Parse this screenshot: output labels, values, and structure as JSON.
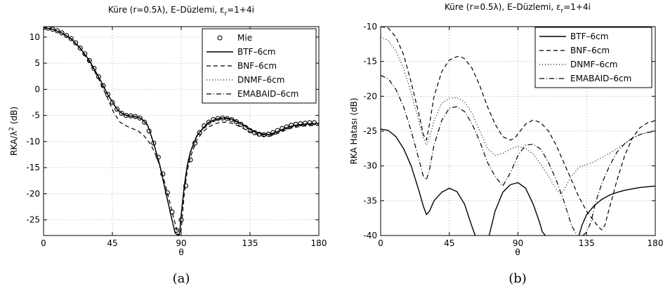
{
  "chart_data": [
    {
      "type": "line",
      "panel": "(a)",
      "title_main": "Küre (r=0.5λ), E–Düzlemi, ε",
      "title_sub": "r",
      "title_tail": "=1+4i",
      "xlabel": "θ",
      "ylabel": "RKA/λ",
      "ylabel_sup": "2",
      "ylabel_tail": " (dB)",
      "xlim": [
        0,
        180
      ],
      "ylim": [
        -28,
        12
      ],
      "xticks": [
        0,
        45,
        90,
        135,
        180
      ],
      "yticks": [
        10,
        5,
        0,
        -5,
        -10,
        -15,
        -20,
        -25
      ],
      "grid": true,
      "legend_position": "top-right",
      "series": [
        {
          "name": "Mie",
          "style": "markers",
          "x": [
            0,
            3,
            6,
            9,
            12,
            15,
            18,
            21,
            24,
            27,
            30,
            33,
            36,
            39,
            42,
            45,
            48,
            51,
            54,
            57,
            60,
            63,
            66,
            69,
            72,
            75,
            78,
            81,
            84,
            87,
            90,
            93,
            96,
            99,
            102,
            105,
            108,
            111,
            114,
            117,
            120,
            123,
            126,
            129,
            132,
            135,
            138,
            141,
            144,
            147,
            150,
            153,
            156,
            159,
            162,
            165,
            168,
            171,
            174,
            177
          ],
          "y": [
            11.8,
            11.7,
            11.5,
            11.2,
            10.8,
            10.3,
            9.7,
            8.9,
            7.9,
            6.8,
            5.5,
            4.0,
            2.4,
            0.7,
            -1.0,
            -2.5,
            -3.8,
            -4.6,
            -5.0,
            -5.1,
            -5.2,
            -5.5,
            -6.3,
            -8.0,
            -10.3,
            -13.0,
            -16.2,
            -19.8,
            -23.5,
            -27.0,
            -25.0,
            -18.5,
            -13.5,
            -10.3,
            -8.3,
            -7.0,
            -6.3,
            -5.8,
            -5.6,
            -5.5,
            -5.6,
            -5.8,
            -6.2,
            -6.7,
            -7.3,
            -7.9,
            -8.3,
            -8.6,
            -8.7,
            -8.6,
            -8.3,
            -7.9,
            -7.5,
            -7.2,
            -6.9,
            -6.7,
            -6.6,
            -6.5,
            -6.4,
            -6.4
          ]
        },
        {
          "name": "BTF–6cm",
          "style": "solid",
          "x": [
            0,
            6,
            12,
            18,
            24,
            30,
            36,
            42,
            48,
            52,
            56,
            60,
            64,
            68,
            72,
            76,
            80,
            84,
            86,
            88,
            89,
            90,
            92,
            94,
            96,
            100,
            104,
            108,
            112,
            116,
            120,
            124,
            128,
            132,
            136,
            140,
            144,
            148,
            152,
            156,
            160,
            166,
            172,
            180
          ],
          "y": [
            11.8,
            11.5,
            10.8,
            9.7,
            7.9,
            5.5,
            2.4,
            -1.0,
            -3.8,
            -4.8,
            -5.1,
            -5.2,
            -5.6,
            -6.8,
            -10.3,
            -14.5,
            -19.8,
            -25.0,
            -27.5,
            -28.0,
            -27.5,
            -24.0,
            -18.5,
            -14.5,
            -12.0,
            -9.0,
            -7.5,
            -6.3,
            -5.8,
            -5.5,
            -5.5,
            -5.8,
            -6.4,
            -7.0,
            -7.8,
            -8.3,
            -8.6,
            -8.6,
            -8.2,
            -7.7,
            -7.2,
            -6.8,
            -6.6,
            -6.5
          ]
        },
        {
          "name": "BNF–6cm",
          "style": "dashed",
          "x": [
            0,
            6,
            12,
            18,
            24,
            30,
            36,
            42,
            46,
            50,
            54,
            58,
            62,
            66,
            70,
            74,
            78,
            82,
            85,
            88,
            89,
            90,
            92,
            94,
            96,
            100,
            104,
            108,
            112,
            116,
            120,
            124,
            128,
            132,
            136,
            140,
            144,
            148,
            152,
            156,
            160,
            166,
            172,
            180
          ],
          "y": [
            11.8,
            11.5,
            10.8,
            9.6,
            7.8,
            5.2,
            2.0,
            -1.8,
            -4.5,
            -6.3,
            -7.0,
            -7.5,
            -8.0,
            -9.0,
            -10.5,
            -13.0,
            -16.5,
            -21.0,
            -24.5,
            -28.0,
            -28.0,
            -27.0,
            -20.0,
            -15.5,
            -13.0,
            -9.8,
            -8.2,
            -7.2,
            -6.6,
            -6.3,
            -6.3,
            -6.6,
            -7.1,
            -7.7,
            -8.3,
            -8.7,
            -9.0,
            -9.0,
            -8.6,
            -8.1,
            -7.6,
            -7.2,
            -7.0,
            -6.9
          ]
        },
        {
          "name": "DNMF–6cm",
          "style": "dotted",
          "x": [
            0,
            6,
            12,
            18,
            24,
            30,
            36,
            42,
            48,
            52,
            56,
            60,
            64,
            68,
            72,
            76,
            80,
            84,
            86,
            88,
            89,
            90,
            92,
            94,
            96,
            100,
            104,
            108,
            112,
            116,
            120,
            124,
            128,
            132,
            136,
            140,
            144,
            148,
            152,
            156,
            160,
            166,
            172,
            180
          ],
          "y": [
            11.8,
            11.5,
            10.7,
            9.6,
            7.8,
            5.4,
            2.3,
            -1.1,
            -3.9,
            -4.9,
            -5.3,
            -5.4,
            -5.8,
            -7.0,
            -10.5,
            -14.7,
            -20.0,
            -25.0,
            -27.5,
            -28.0,
            -27.8,
            -24.5,
            -19.0,
            -15.0,
            -12.3,
            -9.2,
            -7.7,
            -6.5,
            -6.0,
            -5.7,
            -5.7,
            -6.0,
            -6.6,
            -7.2,
            -8.0,
            -8.5,
            -8.8,
            -8.8,
            -8.4,
            -7.9,
            -7.4,
            -7.0,
            -6.8,
            -6.7
          ]
        },
        {
          "name": "EMABAID–6cm",
          "style": "dashdot",
          "x": [
            0,
            6,
            12,
            18,
            24,
            30,
            36,
            42,
            48,
            52,
            56,
            60,
            64,
            68,
            72,
            76,
            80,
            84,
            86,
            88,
            89,
            90,
            92,
            94,
            96,
            100,
            104,
            108,
            112,
            116,
            120,
            124,
            128,
            132,
            136,
            140,
            144,
            148,
            152,
            156,
            160,
            166,
            172,
            180
          ],
          "y": [
            11.8,
            11.5,
            10.8,
            9.7,
            7.9,
            5.5,
            2.4,
            -1.0,
            -3.8,
            -4.8,
            -5.1,
            -5.2,
            -5.6,
            -6.8,
            -10.4,
            -14.6,
            -19.9,
            -25.0,
            -27.5,
            -28.0,
            -27.5,
            -24.2,
            -18.6,
            -14.6,
            -12.1,
            -9.1,
            -7.6,
            -6.4,
            -5.9,
            -5.6,
            -5.6,
            -5.9,
            -6.5,
            -7.1,
            -7.9,
            -8.4,
            -8.7,
            -8.7,
            -8.3,
            -7.8,
            -7.3,
            -6.9,
            -6.7,
            -6.6
          ]
        }
      ]
    },
    {
      "type": "line",
      "panel": "(b)",
      "title_main": "Küre (r=0.5λ), E–Düzlemi, ε",
      "title_sub": "r",
      "title_tail": "=1+4i",
      "xlabel": "θ",
      "ylabel": "RKA Hatası (dB)",
      "xlim": [
        0,
        180
      ],
      "ylim": [
        -40,
        -10
      ],
      "xticks": [
        0,
        45,
        90,
        135,
        180
      ],
      "yticks": [
        -10,
        -15,
        -20,
        -25,
        -30,
        -35,
        -40
      ],
      "grid": true,
      "legend_position": "top-right",
      "series": [
        {
          "name": "BTF–6cm",
          "style": "solid",
          "x": [
            0,
            5,
            10,
            15,
            20,
            25,
            28,
            30,
            32,
            35,
            40,
            45,
            50,
            55,
            58,
            60,
            62,
            64,
            66,
            68,
            70,
            75,
            80,
            85,
            90,
            95,
            100,
            104,
            106,
            108,
            110,
            112,
            114,
            116,
            118,
            126,
            128,
            130,
            132,
            135,
            140,
            145,
            150,
            155,
            160,
            165,
            170,
            175,
            180
          ],
          "y": [
            -24.7,
            -24.9,
            -25.8,
            -27.5,
            -30.0,
            -33.5,
            -35.8,
            -37.0,
            -36.5,
            -35.0,
            -33.8,
            -33.2,
            -33.7,
            -35.5,
            -37.5,
            -38.8,
            -40,
            -41,
            -42,
            -42,
            -41,
            -36.5,
            -33.8,
            -32.7,
            -32.4,
            -33.2,
            -35.5,
            -38.0,
            -39.5,
            -40,
            -41,
            -42,
            -42,
            -42,
            -42,
            -42,
            -41,
            -40,
            -38.5,
            -37.0,
            -35.7,
            -34.8,
            -34.2,
            -33.8,
            -33.5,
            -33.3,
            -33.1,
            -33.0,
            -32.9
          ]
        },
        {
          "name": "BNF–6cm",
          "style": "dashed",
          "x": [
            0,
            5,
            10,
            15,
            20,
            25,
            28,
            30,
            32,
            35,
            40,
            45,
            50,
            52,
            55,
            60,
            65,
            70,
            75,
            80,
            85,
            88,
            90,
            95,
            100,
            105,
            110,
            115,
            120,
            125,
            130,
            135,
            140,
            143,
            145,
            147,
            150,
            155,
            160,
            165,
            170,
            175,
            180
          ],
          "y": [
            -10.0,
            -10.2,
            -11.5,
            -14.0,
            -18.0,
            -22.5,
            -25.5,
            -26.3,
            -24.0,
            -20.0,
            -16.5,
            -14.8,
            -14.3,
            -14.3,
            -14.6,
            -16.0,
            -18.5,
            -21.5,
            -24.0,
            -25.8,
            -26.3,
            -26.0,
            -25.4,
            -24.0,
            -23.4,
            -23.8,
            -25.0,
            -27.0,
            -29.5,
            -32.0,
            -34.5,
            -36.5,
            -38.0,
            -38.8,
            -39.2,
            -38.5,
            -36.0,
            -32.0,
            -28.5,
            -26.0,
            -24.5,
            -23.8,
            -23.5
          ]
        },
        {
          "name": "DNMF–6cm",
          "style": "dotted",
          "x": [
            0,
            5,
            10,
            15,
            20,
            25,
            28,
            30,
            32,
            35,
            40,
            45,
            50,
            55,
            60,
            65,
            70,
            75,
            80,
            85,
            88,
            90,
            95,
            100,
            105,
            110,
            115,
            118,
            120,
            125,
            130,
            135,
            140,
            145,
            150,
            155,
            160,
            165,
            170,
            175,
            180
          ],
          "y": [
            -11.5,
            -12.0,
            -13.5,
            -16.0,
            -19.5,
            -23.5,
            -26.0,
            -27.0,
            -26.0,
            -23.5,
            -21.0,
            -20.3,
            -20.2,
            -20.8,
            -22.5,
            -25.0,
            -27.5,
            -28.5,
            -28.2,
            -27.6,
            -27.3,
            -27.2,
            -27.5,
            -28.3,
            -29.8,
            -31.5,
            -33.3,
            -34.0,
            -33.5,
            -31.5,
            -30.2,
            -29.8,
            -29.4,
            -28.8,
            -28.2,
            -27.5,
            -26.8,
            -26.0,
            -25.5,
            -25.2,
            -25.0
          ]
        },
        {
          "name": "EMABAID–6cm",
          "style": "dashdot",
          "x": [
            0,
            5,
            10,
            15,
            20,
            25,
            28,
            30,
            32,
            35,
            40,
            45,
            50,
            55,
            60,
            65,
            70,
            75,
            80,
            85,
            90,
            95,
            100,
            105,
            110,
            115,
            120,
            125,
            130,
            135,
            138,
            140,
            142,
            145,
            150,
            155,
            160,
            165,
            170,
            175,
            180
          ],
          "y": [
            -17.0,
            -17.5,
            -19.0,
            -21.5,
            -25.0,
            -29.0,
            -31.5,
            -32.0,
            -30.5,
            -27.0,
            -23.5,
            -21.7,
            -21.5,
            -22.2,
            -24.0,
            -26.5,
            -29.5,
            -31.5,
            -32.9,
            -31.0,
            -28.5,
            -27.0,
            -26.9,
            -27.6,
            -29.5,
            -32.0,
            -35.0,
            -38.5,
            -40.5,
            -39.5,
            -38.0,
            -36.0,
            -34.5,
            -32.5,
            -30.0,
            -28.0,
            -26.8,
            -26.0,
            -25.5,
            -25.2,
            -25.0
          ]
        }
      ]
    }
  ]
}
